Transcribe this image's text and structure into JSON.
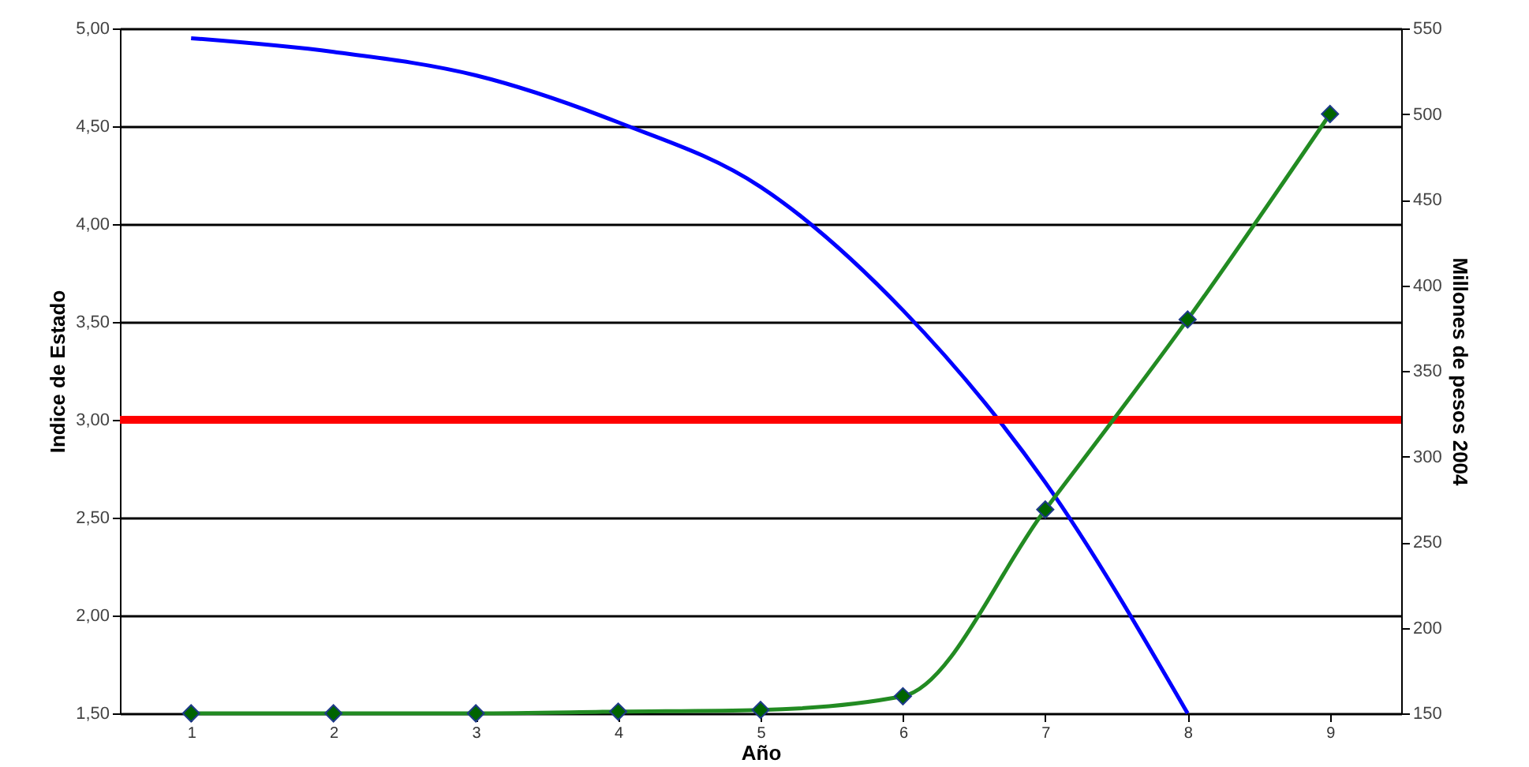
{
  "chart_data": {
    "type": "line",
    "xlabel": "Año",
    "ylabel": "Indice de Estado",
    "y2label": "Millones de pesos 2004",
    "categories": [
      "1",
      "2",
      "3",
      "4",
      "5",
      "6",
      "7",
      "8",
      "9"
    ],
    "series": [
      {
        "color": "#0000ff",
        "marker": "none",
        "values": [
          4.95,
          4.88,
          4.76,
          4.52,
          4.19,
          3.56,
          2.68,
          1.5,
          null
        ]
      },
      {
        "color": "#228b22",
        "marker": "diamond",
        "axis": "y2",
        "values": [
          150,
          150,
          150,
          151,
          152,
          160,
          269,
          380,
          500
        ]
      }
    ],
    "ylim": [
      1.5,
      5
    ],
    "yticks": [
      {
        "value": 1.5,
        "label": "1,50"
      },
      {
        "value": 2,
        "label": "2,00"
      },
      {
        "value": 2.5,
        "label": "2,50"
      },
      {
        "value": 3,
        "label": "3,00"
      },
      {
        "value": 3.5,
        "label": "3,50"
      },
      {
        "value": 4,
        "label": "4,00"
      },
      {
        "value": 4.5,
        "label": "4,50"
      },
      {
        "value": 5,
        "label": "5,00"
      }
    ],
    "y2lim": [
      150,
      550
    ],
    "y2ticks": [
      150,
      200,
      250,
      300,
      350,
      400,
      450,
      500,
      550
    ],
    "ref_lines": [
      {
        "axis": "y",
        "value": 3,
        "color": "#ff0000"
      }
    ],
    "grid": "y"
  }
}
